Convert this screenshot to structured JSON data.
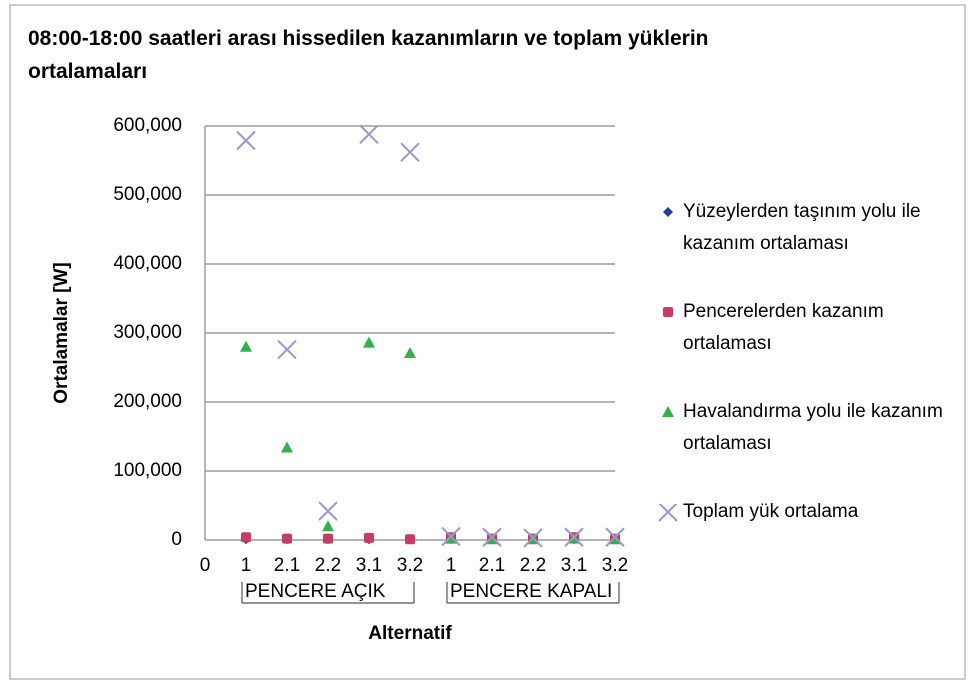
{
  "chart_data": {
    "type": "scatter",
    "title": "08:00-18:00 saatleri arası hissedilen kazanımların ve toplam yüklerin ortalamaları",
    "x_label": "Alternatif",
    "y_label": "Ortalamalar [W]",
    "x_origin_label": "0",
    "groups": [
      {
        "name": "PENCERE AÇIK",
        "categories": [
          "1",
          "2.1",
          "2.2",
          "3.1",
          "3.2"
        ]
      },
      {
        "name": "PENCERE KAPALI",
        "categories": [
          "1",
          "2.1",
          "2.2",
          "3.1",
          "3.2"
        ]
      }
    ],
    "ylim": [
      0,
      600000
    ],
    "yticks": [
      0,
      {
        "value": 100000,
        "label": "100,000"
      },
      {
        "value": 200000,
        "label": "200,000"
      },
      {
        "value": 300000,
        "label": "300,000"
      },
      {
        "value": 400000,
        "label": "400,000"
      },
      {
        "value": 500000,
        "label": "500,000"
      },
      {
        "value": 600000,
        "label": "600,000"
      }
    ],
    "grid": true,
    "legend": "right",
    "series": [
      {
        "name": "Yüzeylerden taşınım yolu ile kazanım ortalaması",
        "color": "#1f3f9f",
        "marker": "diamond",
        "values": [
          1000,
          1000,
          1000,
          1000,
          1000,
          1000,
          1000,
          1000,
          1000,
          1000
        ]
      },
      {
        "name": "Pencerelerden kazanım ortalaması",
        "color": "#c83c64",
        "marker": "square",
        "values": [
          4000,
          2000,
          2000,
          3000,
          1000,
          4000,
          2000,
          2000,
          4000,
          2000
        ]
      },
      {
        "name": "Havalandırma yolu ile kazanım ortalaması",
        "color": "#2fb24a",
        "marker": "triangle",
        "values": [
          280000,
          134000,
          20000,
          286000,
          271000,
          2000,
          1000,
          1000,
          2000,
          1000
        ]
      },
      {
        "name": "Toplam yük ortalama",
        "color": "#a094cc",
        "marker": "x",
        "values": [
          579000,
          276000,
          42000,
          588000,
          562000,
          5000,
          4000,
          3000,
          4000,
          4000
        ]
      }
    ]
  }
}
